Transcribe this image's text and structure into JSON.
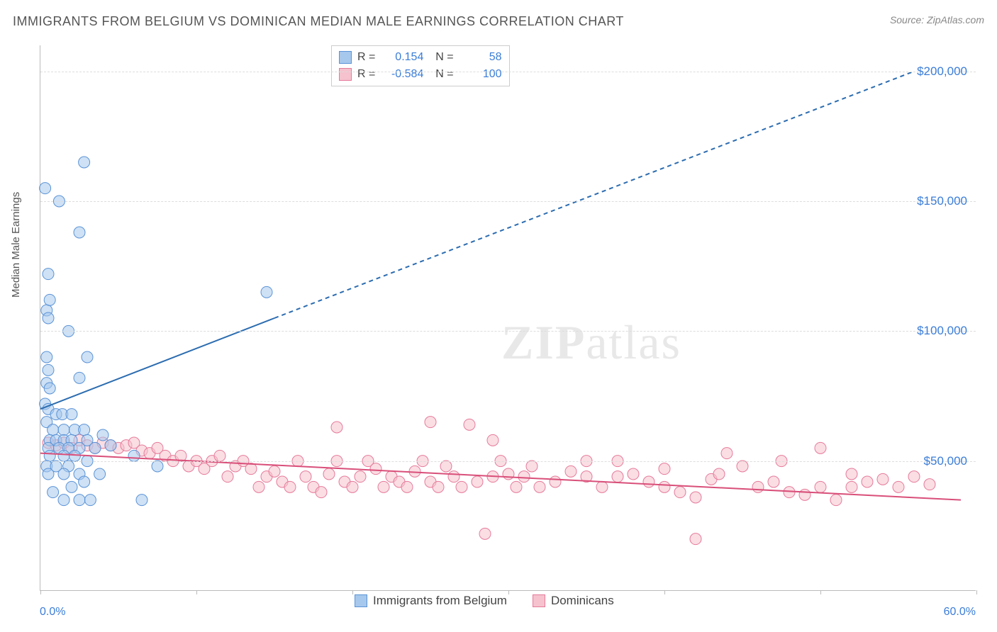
{
  "title": "IMMIGRANTS FROM BELGIUM VS DOMINICAN MEDIAN MALE EARNINGS CORRELATION CHART",
  "source": "Source: ZipAtlas.com",
  "ylabel": "Median Male Earnings",
  "watermark": {
    "prefix": "ZIP",
    "suffix": "atlas"
  },
  "chart": {
    "type": "scatter",
    "xlim": [
      0,
      60
    ],
    "ylim": [
      0,
      210000
    ],
    "x_axis": {
      "min_label": "0.0%",
      "max_label": "60.0%"
    },
    "y_ticks": [
      {
        "value": 50000,
        "label": "$50,000"
      },
      {
        "value": 100000,
        "label": "$100,000"
      },
      {
        "value": 150000,
        "label": "$150,000"
      },
      {
        "value": 200000,
        "label": "$200,000"
      }
    ],
    "x_tick_positions": [
      0,
      10,
      20,
      30,
      40,
      50,
      60
    ],
    "background_color": "#ffffff",
    "grid_color": "#dddddd",
    "marker_radius": 8,
    "marker_opacity": 0.55,
    "series": [
      {
        "name": "Immigrants from Belgium",
        "color_fill": "#a6c8ec",
        "color_stroke": "#5b93d6",
        "R": "0.154",
        "N": "58",
        "trend": {
          "solid": {
            "x1": 0,
            "y1": 70000,
            "x2": 15,
            "y2": 105000
          },
          "dashed": {
            "x1": 15,
            "y1": 105000,
            "x2": 56,
            "y2": 200000
          },
          "stroke": "#2b6cb0",
          "width": 2
        },
        "points": [
          [
            0.3,
            155000
          ],
          [
            1.2,
            150000
          ],
          [
            2.8,
            165000
          ],
          [
            2.5,
            138000
          ],
          [
            0.5,
            122000
          ],
          [
            0.4,
            108000
          ],
          [
            0.5,
            105000
          ],
          [
            0.6,
            112000
          ],
          [
            1.8,
            100000
          ],
          [
            3.0,
            90000
          ],
          [
            0.4,
            90000
          ],
          [
            0.5,
            85000
          ],
          [
            0.4,
            80000
          ],
          [
            0.6,
            78000
          ],
          [
            2.5,
            82000
          ],
          [
            14.5,
            115000
          ],
          [
            0.3,
            72000
          ],
          [
            0.5,
            70000
          ],
          [
            1.0,
            68000
          ],
          [
            1.4,
            68000
          ],
          [
            2.0,
            68000
          ],
          [
            0.4,
            65000
          ],
          [
            0.8,
            62000
          ],
          [
            1.5,
            62000
          ],
          [
            2.2,
            62000
          ],
          [
            2.8,
            62000
          ],
          [
            0.6,
            58000
          ],
          [
            1.0,
            58000
          ],
          [
            1.5,
            58000
          ],
          [
            2.0,
            58000
          ],
          [
            3.0,
            58000
          ],
          [
            4.0,
            60000
          ],
          [
            0.5,
            55000
          ],
          [
            1.2,
            55000
          ],
          [
            1.8,
            55000
          ],
          [
            2.5,
            55000
          ],
          [
            3.5,
            55000
          ],
          [
            0.6,
            52000
          ],
          [
            1.5,
            52000
          ],
          [
            2.2,
            52000
          ],
          [
            0.4,
            48000
          ],
          [
            1.0,
            48000
          ],
          [
            1.8,
            48000
          ],
          [
            3.0,
            50000
          ],
          [
            4.5,
            56000
          ],
          [
            0.5,
            45000
          ],
          [
            1.5,
            45000
          ],
          [
            2.5,
            45000
          ],
          [
            6.0,
            52000
          ],
          [
            7.5,
            48000
          ],
          [
            0.8,
            38000
          ],
          [
            1.5,
            35000
          ],
          [
            2.5,
            35000
          ],
          [
            3.2,
            35000
          ],
          [
            6.5,
            35000
          ],
          [
            2.0,
            40000
          ],
          [
            2.8,
            42000
          ],
          [
            3.8,
            45000
          ]
        ]
      },
      {
        "name": "Dominicans",
        "color_fill": "#f5c2ce",
        "color_stroke": "#e67a9a",
        "R": "-0.584",
        "N": "100",
        "trend": {
          "solid": {
            "x1": 0,
            "y1": 53000,
            "x2": 59,
            "y2": 35000
          },
          "dashed": null,
          "stroke": "#d94f7a",
          "width": 2
        },
        "points": [
          [
            0.5,
            57000
          ],
          [
            1.0,
            56000
          ],
          [
            1.5,
            57000
          ],
          [
            2.0,
            55000
          ],
          [
            2.5,
            58000
          ],
          [
            3.0,
            56000
          ],
          [
            3.5,
            55000
          ],
          [
            4.0,
            57000
          ],
          [
            4.5,
            56000
          ],
          [
            5.0,
            55000
          ],
          [
            5.5,
            56000
          ],
          [
            6.0,
            57000
          ],
          [
            6.5,
            54000
          ],
          [
            7.0,
            53000
          ],
          [
            7.5,
            55000
          ],
          [
            8.0,
            52000
          ],
          [
            8.5,
            50000
          ],
          [
            9.0,
            52000
          ],
          [
            9.5,
            48000
          ],
          [
            10.0,
            50000
          ],
          [
            10.5,
            47000
          ],
          [
            11.0,
            50000
          ],
          [
            11.5,
            52000
          ],
          [
            12.0,
            44000
          ],
          [
            12.5,
            48000
          ],
          [
            13.0,
            50000
          ],
          [
            13.5,
            47000
          ],
          [
            14.0,
            40000
          ],
          [
            14.5,
            44000
          ],
          [
            15.0,
            46000
          ],
          [
            15.5,
            42000
          ],
          [
            16.0,
            40000
          ],
          [
            16.5,
            50000
          ],
          [
            17.0,
            44000
          ],
          [
            17.5,
            40000
          ],
          [
            18.0,
            38000
          ],
          [
            18.5,
            45000
          ],
          [
            19.0,
            50000
          ],
          [
            19.5,
            42000
          ],
          [
            20.0,
            40000
          ],
          [
            20.5,
            44000
          ],
          [
            21.0,
            50000
          ],
          [
            21.5,
            47000
          ],
          [
            22.0,
            40000
          ],
          [
            22.5,
            44000
          ],
          [
            23.0,
            42000
          ],
          [
            23.5,
            40000
          ],
          [
            24.0,
            46000
          ],
          [
            24.5,
            50000
          ],
          [
            25.0,
            42000
          ],
          [
            25.5,
            40000
          ],
          [
            26.0,
            48000
          ],
          [
            26.5,
            44000
          ],
          [
            27.0,
            40000
          ],
          [
            27.5,
            64000
          ],
          [
            28.0,
            42000
          ],
          [
            28.5,
            22000
          ],
          [
            29.0,
            44000
          ],
          [
            29.5,
            50000
          ],
          [
            30.0,
            45000
          ],
          [
            30.5,
            40000
          ],
          [
            31.0,
            44000
          ],
          [
            31.5,
            48000
          ],
          [
            32.0,
            40000
          ],
          [
            33.0,
            42000
          ],
          [
            34.0,
            46000
          ],
          [
            35.0,
            44000
          ],
          [
            36.0,
            40000
          ],
          [
            37.0,
            44000
          ],
          [
            38.0,
            45000
          ],
          [
            39.0,
            42000
          ],
          [
            40.0,
            40000
          ],
          [
            41.0,
            38000
          ],
          [
            42.0,
            36000
          ],
          [
            43.0,
            43000
          ],
          [
            43.5,
            45000
          ],
          [
            44.0,
            53000
          ],
          [
            45.0,
            48000
          ],
          [
            46.0,
            40000
          ],
          [
            47.0,
            42000
          ],
          [
            48.0,
            38000
          ],
          [
            49.0,
            37000
          ],
          [
            50.0,
            40000
          ],
          [
            51.0,
            35000
          ],
          [
            52.0,
            40000
          ],
          [
            42.0,
            20000
          ],
          [
            19.0,
            63000
          ],
          [
            25.0,
            65000
          ],
          [
            29.0,
            58000
          ],
          [
            35.0,
            50000
          ],
          [
            40.0,
            47000
          ],
          [
            47.5,
            50000
          ],
          [
            50.0,
            55000
          ],
          [
            52.0,
            45000
          ],
          [
            53.0,
            42000
          ],
          [
            54.0,
            43000
          ],
          [
            55.0,
            40000
          ],
          [
            56.0,
            44000
          ],
          [
            57.0,
            41000
          ],
          [
            37.0,
            50000
          ]
        ]
      }
    ]
  }
}
